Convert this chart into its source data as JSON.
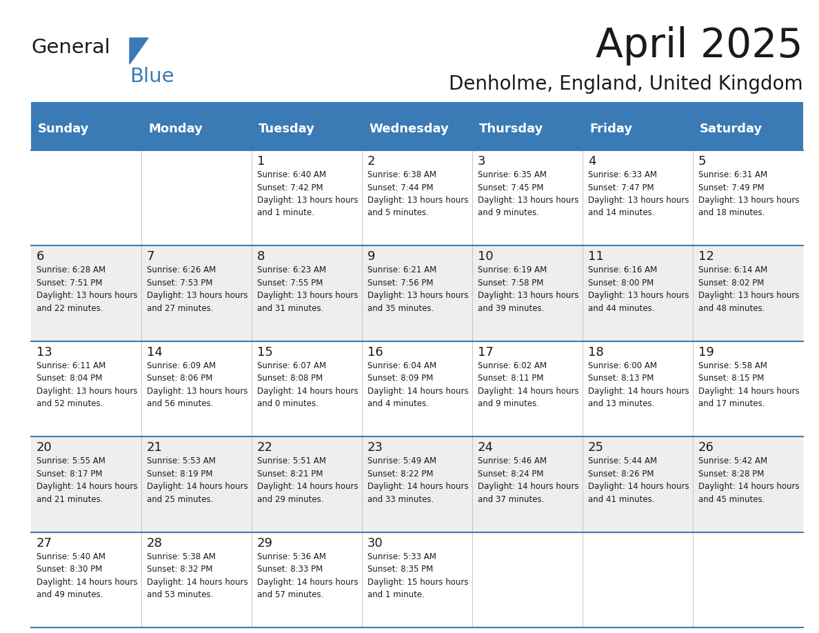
{
  "title": "April 2025",
  "subtitle": "Denholme, England, United Kingdom",
  "header_bg_color": "#3a7ab5",
  "header_text_color": "#ffffff",
  "weekdays": [
    "Sunday",
    "Monday",
    "Tuesday",
    "Wednesday",
    "Thursday",
    "Friday",
    "Saturday"
  ],
  "row_bg_even": "#eeeeee",
  "row_bg_odd": "#ffffff",
  "cell_border_color": "#3a7ab5",
  "title_color": "#1a1a1a",
  "subtitle_color": "#1a1a1a",
  "logo_text1": "General",
  "logo_text2": "Blue",
  "logo_triangle_color": "#3a7ab5",
  "days": [
    {
      "date": 1,
      "col": 2,
      "row": 0,
      "sunrise": "6:40 AM",
      "sunset": "7:42 PM",
      "daylight": "13 hours and 1 minute."
    },
    {
      "date": 2,
      "col": 3,
      "row": 0,
      "sunrise": "6:38 AM",
      "sunset": "7:44 PM",
      "daylight": "13 hours and 5 minutes."
    },
    {
      "date": 3,
      "col": 4,
      "row": 0,
      "sunrise": "6:35 AM",
      "sunset": "7:45 PM",
      "daylight": "13 hours and 9 minutes."
    },
    {
      "date": 4,
      "col": 5,
      "row": 0,
      "sunrise": "6:33 AM",
      "sunset": "7:47 PM",
      "daylight": "13 hours and 14 minutes."
    },
    {
      "date": 5,
      "col": 6,
      "row": 0,
      "sunrise": "6:31 AM",
      "sunset": "7:49 PM",
      "daylight": "13 hours and 18 minutes."
    },
    {
      "date": 6,
      "col": 0,
      "row": 1,
      "sunrise": "6:28 AM",
      "sunset": "7:51 PM",
      "daylight": "13 hours and 22 minutes."
    },
    {
      "date": 7,
      "col": 1,
      "row": 1,
      "sunrise": "6:26 AM",
      "sunset": "7:53 PM",
      "daylight": "13 hours and 27 minutes."
    },
    {
      "date": 8,
      "col": 2,
      "row": 1,
      "sunrise": "6:23 AM",
      "sunset": "7:55 PM",
      "daylight": "13 hours and 31 minutes."
    },
    {
      "date": 9,
      "col": 3,
      "row": 1,
      "sunrise": "6:21 AM",
      "sunset": "7:56 PM",
      "daylight": "13 hours and 35 minutes."
    },
    {
      "date": 10,
      "col": 4,
      "row": 1,
      "sunrise": "6:19 AM",
      "sunset": "7:58 PM",
      "daylight": "13 hours and 39 minutes."
    },
    {
      "date": 11,
      "col": 5,
      "row": 1,
      "sunrise": "6:16 AM",
      "sunset": "8:00 PM",
      "daylight": "13 hours and 44 minutes."
    },
    {
      "date": 12,
      "col": 6,
      "row": 1,
      "sunrise": "6:14 AM",
      "sunset": "8:02 PM",
      "daylight": "13 hours and 48 minutes."
    },
    {
      "date": 13,
      "col": 0,
      "row": 2,
      "sunrise": "6:11 AM",
      "sunset": "8:04 PM",
      "daylight": "13 hours and 52 minutes."
    },
    {
      "date": 14,
      "col": 1,
      "row": 2,
      "sunrise": "6:09 AM",
      "sunset": "8:06 PM",
      "daylight": "13 hours and 56 minutes."
    },
    {
      "date": 15,
      "col": 2,
      "row": 2,
      "sunrise": "6:07 AM",
      "sunset": "8:08 PM",
      "daylight": "14 hours and 0 minutes."
    },
    {
      "date": 16,
      "col": 3,
      "row": 2,
      "sunrise": "6:04 AM",
      "sunset": "8:09 PM",
      "daylight": "14 hours and 4 minutes."
    },
    {
      "date": 17,
      "col": 4,
      "row": 2,
      "sunrise": "6:02 AM",
      "sunset": "8:11 PM",
      "daylight": "14 hours and 9 minutes."
    },
    {
      "date": 18,
      "col": 5,
      "row": 2,
      "sunrise": "6:00 AM",
      "sunset": "8:13 PM",
      "daylight": "14 hours and 13 minutes."
    },
    {
      "date": 19,
      "col": 6,
      "row": 2,
      "sunrise": "5:58 AM",
      "sunset": "8:15 PM",
      "daylight": "14 hours and 17 minutes."
    },
    {
      "date": 20,
      "col": 0,
      "row": 3,
      "sunrise": "5:55 AM",
      "sunset": "8:17 PM",
      "daylight": "14 hours and 21 minutes."
    },
    {
      "date": 21,
      "col": 1,
      "row": 3,
      "sunrise": "5:53 AM",
      "sunset": "8:19 PM",
      "daylight": "14 hours and 25 minutes."
    },
    {
      "date": 22,
      "col": 2,
      "row": 3,
      "sunrise": "5:51 AM",
      "sunset": "8:21 PM",
      "daylight": "14 hours and 29 minutes."
    },
    {
      "date": 23,
      "col": 3,
      "row": 3,
      "sunrise": "5:49 AM",
      "sunset": "8:22 PM",
      "daylight": "14 hours and 33 minutes."
    },
    {
      "date": 24,
      "col": 4,
      "row": 3,
      "sunrise": "5:46 AM",
      "sunset": "8:24 PM",
      "daylight": "14 hours and 37 minutes."
    },
    {
      "date": 25,
      "col": 5,
      "row": 3,
      "sunrise": "5:44 AM",
      "sunset": "8:26 PM",
      "daylight": "14 hours and 41 minutes."
    },
    {
      "date": 26,
      "col": 6,
      "row": 3,
      "sunrise": "5:42 AM",
      "sunset": "8:28 PM",
      "daylight": "14 hours and 45 minutes."
    },
    {
      "date": 27,
      "col": 0,
      "row": 4,
      "sunrise": "5:40 AM",
      "sunset": "8:30 PM",
      "daylight": "14 hours and 49 minutes."
    },
    {
      "date": 28,
      "col": 1,
      "row": 4,
      "sunrise": "5:38 AM",
      "sunset": "8:32 PM",
      "daylight": "14 hours and 53 minutes."
    },
    {
      "date": 29,
      "col": 2,
      "row": 4,
      "sunrise": "5:36 AM",
      "sunset": "8:33 PM",
      "daylight": "14 hours and 57 minutes."
    },
    {
      "date": 30,
      "col": 3,
      "row": 4,
      "sunrise": "5:33 AM",
      "sunset": "8:35 PM",
      "daylight": "15 hours and 1 minute."
    }
  ]
}
